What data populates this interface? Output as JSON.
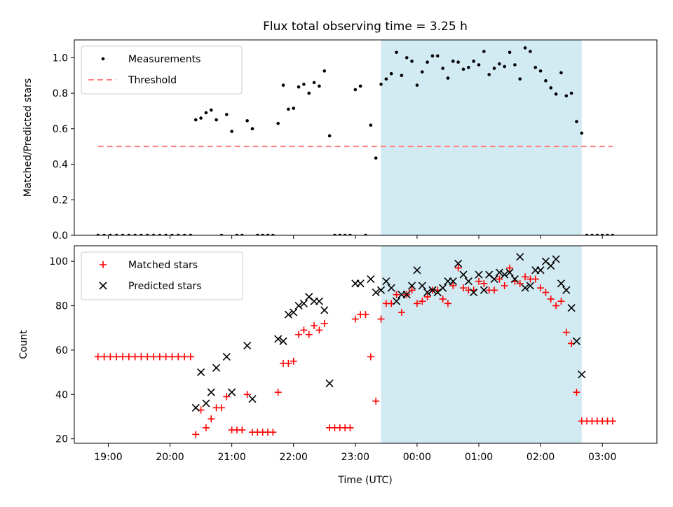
{
  "figure": {
    "title": "Flux total observing time = 3.25 h",
    "xlabel": "Time (UTC)"
  },
  "chart_data": [
    {
      "type": "scatter",
      "ylabel": "Matched/Predicted stars",
      "xlim": [
        "18:27",
        "03:53"
      ],
      "ylim": [
        0,
        1.1
      ],
      "yticks": [
        0.0,
        0.2,
        0.4,
        0.6,
        0.8,
        1.0
      ],
      "grid": false,
      "legend": "upper-left",
      "shaded_region": {
        "start": "23:25",
        "end": "02:40",
        "color": "#add8e6"
      },
      "threshold": {
        "name": "Threshold",
        "value": 0.5,
        "x_start": "18:50",
        "x_end": "03:10",
        "color": "#ff8080"
      },
      "series": [
        {
          "name": "Measurements",
          "color": "#000000",
          "marker": "dot",
          "points": [
            [
              "18:50",
              0
            ],
            [
              "18:56",
              0
            ],
            [
              "19:02",
              0
            ],
            [
              "19:08",
              0
            ],
            [
              "19:14",
              0
            ],
            [
              "19:20",
              0
            ],
            [
              "19:26",
              0
            ],
            [
              "19:32",
              0
            ],
            [
              "19:38",
              0
            ],
            [
              "19:44",
              0
            ],
            [
              "19:50",
              0
            ],
            [
              "19:56",
              0
            ],
            [
              "20:02",
              0
            ],
            [
              "20:08",
              0
            ],
            [
              "20:14",
              0
            ],
            [
              "20:20",
              0
            ],
            [
              "20:25",
              0.65
            ],
            [
              "20:30",
              0.66
            ],
            [
              "20:35",
              0.69
            ],
            [
              "20:40",
              0.705
            ],
            [
              "20:45",
              0.65
            ],
            [
              "20:50",
              0
            ],
            [
              "20:55",
              0.68
            ],
            [
              "21:00",
              0.585
            ],
            [
              "21:05",
              0
            ],
            [
              "21:10",
              0
            ],
            [
              "21:15",
              0.645
            ],
            [
              "21:20",
              0.6
            ],
            [
              "21:25",
              0
            ],
            [
              "21:30",
              0
            ],
            [
              "21:35",
              0
            ],
            [
              "21:40",
              0
            ],
            [
              "21:45",
              0.63
            ],
            [
              "21:50",
              0.845
            ],
            [
              "21:55",
              0.71
            ],
            [
              "22:00",
              0.715
            ],
            [
              "22:05",
              0.835
            ],
            [
              "22:10",
              0.85
            ],
            [
              "22:15",
              0.8
            ],
            [
              "22:20",
              0.86
            ],
            [
              "22:25",
              0.84
            ],
            [
              "22:30",
              0.925
            ],
            [
              "22:35",
              0.56
            ],
            [
              "22:40",
              0
            ],
            [
              "22:45",
              0
            ],
            [
              "22:50",
              0
            ],
            [
              "22:55",
              0
            ],
            [
              "23:00",
              0.82
            ],
            [
              "23:05",
              0.84
            ],
            [
              "23:10",
              0
            ],
            [
              "23:15",
              0.62
            ],
            [
              "23:20",
              0.435
            ],
            [
              "23:25",
              0.85
            ],
            [
              "23:30",
              0.88
            ],
            [
              "23:35",
              0.91
            ],
            [
              "23:40",
              1.03
            ],
            [
              "23:45",
              0.9
            ],
            [
              "23:50",
              1.0
            ],
            [
              "23:55",
              0.98
            ],
            [
              "00:00",
              0.845
            ],
            [
              "00:05",
              0.92
            ],
            [
              "00:10",
              0.975
            ],
            [
              "00:15",
              1.01
            ],
            [
              "00:20",
              1.01
            ],
            [
              "00:25",
              0.94
            ],
            [
              "00:30",
              0.885
            ],
            [
              "00:35",
              0.98
            ],
            [
              "00:40",
              0.975
            ],
            [
              "00:45",
              0.935
            ],
            [
              "00:50",
              0.945
            ],
            [
              "00:55",
              0.98
            ],
            [
              "01:00",
              0.96
            ],
            [
              "01:05",
              1.035
            ],
            [
              "01:10",
              0.905
            ],
            [
              "01:15",
              0.94
            ],
            [
              "01:20",
              0.965
            ],
            [
              "01:25",
              0.95
            ],
            [
              "01:30",
              1.03
            ],
            [
              "01:35",
              0.96
            ],
            [
              "01:40",
              0.88
            ],
            [
              "01:45",
              1.055
            ],
            [
              "01:50",
              1.035
            ],
            [
              "01:55",
              0.945
            ],
            [
              "02:00",
              0.925
            ],
            [
              "02:05",
              0.87
            ],
            [
              "02:10",
              0.83
            ],
            [
              "02:15",
              0.795
            ],
            [
              "02:20",
              0.915
            ],
            [
              "02:25",
              0.785
            ],
            [
              "02:30",
              0.8
            ],
            [
              "02:35",
              0.64
            ],
            [
              "02:40",
              0.575
            ],
            [
              "02:45",
              0
            ],
            [
              "02:50",
              0
            ],
            [
              "02:55",
              0
            ],
            [
              "03:00",
              0
            ],
            [
              "03:05",
              0
            ],
            [
              "03:10",
              0
            ]
          ]
        }
      ]
    },
    {
      "type": "scatter",
      "ylabel": "Count",
      "xlim": [
        "18:27",
        "03:53"
      ],
      "ylim": [
        18,
        107
      ],
      "yticks": [
        20,
        40,
        60,
        80,
        100
      ],
      "xticks": [
        "19:00",
        "20:00",
        "21:00",
        "22:00",
        "23:00",
        "00:00",
        "01:00",
        "02:00",
        "03:00"
      ],
      "grid": false,
      "legend": "upper-left",
      "shaded_region": {
        "start": "23:25",
        "end": "02:40",
        "color": "#add8e6"
      },
      "series": [
        {
          "name": "Matched stars",
          "color": "#ff0000",
          "marker": "plus",
          "points": [
            [
              "18:50",
              57
            ],
            [
              "18:56",
              57
            ],
            [
              "19:02",
              57
            ],
            [
              "19:08",
              57
            ],
            [
              "19:14",
              57
            ],
            [
              "19:20",
              57
            ],
            [
              "19:26",
              57
            ],
            [
              "19:32",
              57
            ],
            [
              "19:38",
              57
            ],
            [
              "19:44",
              57
            ],
            [
              "19:50",
              57
            ],
            [
              "19:56",
              57
            ],
            [
              "20:02",
              57
            ],
            [
              "20:08",
              57
            ],
            [
              "20:14",
              57
            ],
            [
              "20:20",
              57
            ],
            [
              "20:25",
              22
            ],
            [
              "20:30",
              33
            ],
            [
              "20:35",
              25
            ],
            [
              "20:40",
              29
            ],
            [
              "20:45",
              34
            ],
            [
              "20:50",
              34
            ],
            [
              "20:55",
              39
            ],
            [
              "21:00",
              24
            ],
            [
              "21:05",
              24
            ],
            [
              "21:10",
              24
            ],
            [
              "21:15",
              40
            ],
            [
              "21:20",
              23
            ],
            [
              "21:25",
              23
            ],
            [
              "21:30",
              23
            ],
            [
              "21:35",
              23
            ],
            [
              "21:40",
              23
            ],
            [
              "21:45",
              41
            ],
            [
              "21:50",
              54
            ],
            [
              "21:55",
              54
            ],
            [
              "22:00",
              55
            ],
            [
              "22:05",
              67
            ],
            [
              "22:10",
              69
            ],
            [
              "22:15",
              67
            ],
            [
              "22:20",
              71
            ],
            [
              "22:25",
              69
            ],
            [
              "22:30",
              72
            ],
            [
              "22:35",
              25
            ],
            [
              "22:40",
              25
            ],
            [
              "22:45",
              25
            ],
            [
              "22:50",
              25
            ],
            [
              "22:55",
              25
            ],
            [
              "23:00",
              74
            ],
            [
              "23:05",
              76
            ],
            [
              "23:10",
              76
            ],
            [
              "23:15",
              57
            ],
            [
              "23:20",
              37
            ],
            [
              "23:25",
              74
            ],
            [
              "23:30",
              81
            ],
            [
              "23:35",
              81
            ],
            [
              "23:40",
              85
            ],
            [
              "23:45",
              77
            ],
            [
              "23:50",
              85
            ],
            [
              "23:55",
              87
            ],
            [
              "00:00",
              81
            ],
            [
              "00:05",
              82
            ],
            [
              "00:10",
              84
            ],
            [
              "00:15",
              87
            ],
            [
              "00:20",
              87
            ],
            [
              "00:25",
              83
            ],
            [
              "00:30",
              81
            ],
            [
              "00:35",
              89
            ],
            [
              "00:40",
              97
            ],
            [
              "00:45",
              88
            ],
            [
              "00:50",
              87
            ],
            [
              "00:55",
              87
            ],
            [
              "01:00",
              91
            ],
            [
              "01:05",
              90
            ],
            [
              "01:10",
              87
            ],
            [
              "01:15",
              87
            ],
            [
              "01:20",
              92
            ],
            [
              "01:25",
              89
            ],
            [
              "01:30",
              97
            ],
            [
              "01:35",
              91
            ],
            [
              "01:40",
              90
            ],
            [
              "01:45",
              93
            ],
            [
              "01:50",
              92
            ],
            [
              "01:55",
              92
            ],
            [
              "02:00",
              88
            ],
            [
              "02:05",
              86
            ],
            [
              "02:10",
              83
            ],
            [
              "02:15",
              80
            ],
            [
              "02:20",
              82
            ],
            [
              "02:25",
              68
            ],
            [
              "02:30",
              63
            ],
            [
              "02:35",
              41
            ],
            [
              "02:40",
              28
            ],
            [
              "02:45",
              28
            ],
            [
              "02:50",
              28
            ],
            [
              "02:55",
              28
            ],
            [
              "03:00",
              28
            ],
            [
              "03:05",
              28
            ],
            [
              "03:10",
              28
            ]
          ]
        },
        {
          "name": "Predicted stars",
          "color": "#000000",
          "marker": "x",
          "points": [
            [
              "20:25",
              34
            ],
            [
              "20:30",
              50
            ],
            [
              "20:35",
              36
            ],
            [
              "20:40",
              41
            ],
            [
              "20:45",
              52
            ],
            [
              "20:55",
              57
            ],
            [
              "21:00",
              41
            ],
            [
              "21:15",
              62
            ],
            [
              "21:20",
              38
            ],
            [
              "21:45",
              65
            ],
            [
              "21:50",
              64
            ],
            [
              "21:55",
              76
            ],
            [
              "22:00",
              77
            ],
            [
              "22:05",
              80
            ],
            [
              "22:10",
              81
            ],
            [
              "22:15",
              84
            ],
            [
              "22:20",
              82
            ],
            [
              "22:25",
              82
            ],
            [
              "22:30",
              78
            ],
            [
              "22:35",
              45
            ],
            [
              "23:00",
              90
            ],
            [
              "23:05",
              90
            ],
            [
              "23:15",
              92
            ],
            [
              "23:20",
              86
            ],
            [
              "23:25",
              87
            ],
            [
              "23:30",
              91
            ],
            [
              "23:35",
              88
            ],
            [
              "23:40",
              82
            ],
            [
              "23:45",
              85
            ],
            [
              "23:50",
              85
            ],
            [
              "23:55",
              89
            ],
            [
              "00:00",
              96
            ],
            [
              "00:05",
              89
            ],
            [
              "00:10",
              86
            ],
            [
              "00:15",
              87
            ],
            [
              "00:20",
              86
            ],
            [
              "00:25",
              88
            ],
            [
              "00:30",
              91
            ],
            [
              "00:35",
              91
            ],
            [
              "00:40",
              99
            ],
            [
              "00:45",
              94
            ],
            [
              "00:50",
              91
            ],
            [
              "00:55",
              86
            ],
            [
              "01:00",
              94
            ],
            [
              "01:05",
              87
            ],
            [
              "01:10",
              94
            ],
            [
              "01:15",
              92
            ],
            [
              "01:20",
              95
            ],
            [
              "01:25",
              94
            ],
            [
              "01:30",
              95
            ],
            [
              "01:35",
              92
            ],
            [
              "01:40",
              102
            ],
            [
              "01:45",
              88
            ],
            [
              "01:50",
              89
            ],
            [
              "01:55",
              96
            ],
            [
              "02:00",
              96
            ],
            [
              "02:05",
              100
            ],
            [
              "02:10",
              98
            ],
            [
              "02:15",
              101
            ],
            [
              "02:20",
              90
            ],
            [
              "02:25",
              87
            ],
            [
              "02:30",
              79
            ],
            [
              "02:35",
              64
            ],
            [
              "02:40",
              49
            ]
          ]
        }
      ]
    }
  ]
}
